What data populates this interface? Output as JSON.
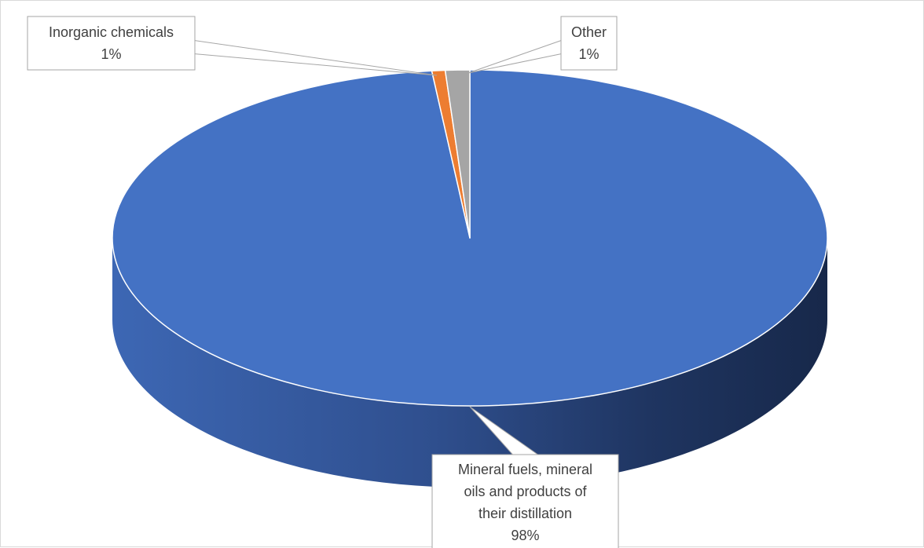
{
  "chart_data": {
    "type": "pie",
    "style": "3d",
    "title": "",
    "slices": [
      {
        "label_lines": [
          "Mineral fuels, mineral",
          "oils and products of",
          "their distillation"
        ],
        "percent_label": "98%",
        "value": 98.3,
        "color": "#4472C4"
      },
      {
        "label_lines": [
          "Inorganic chemicals"
        ],
        "percent_label": "1%",
        "value": 0.6,
        "color": "#ED7D31"
      },
      {
        "label_lines": [
          "Other"
        ],
        "percent_label": "1%",
        "value": 1.1,
        "color": "#A5A5A5"
      }
    ],
    "legend": "none",
    "data_labels": "callouts"
  }
}
